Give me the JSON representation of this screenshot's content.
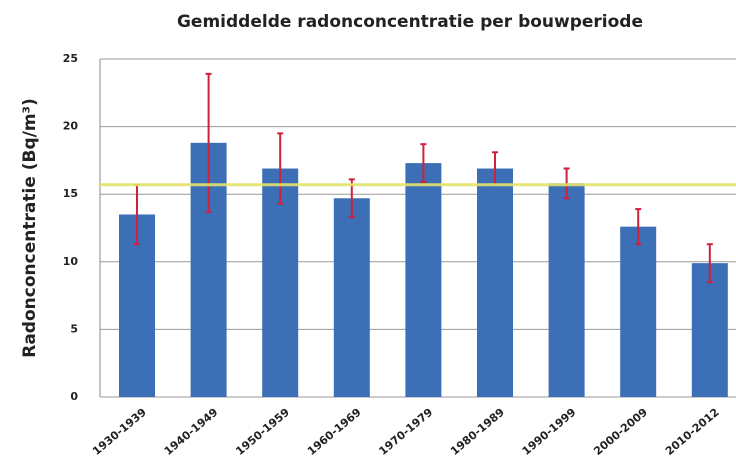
{
  "chart_data": {
    "type": "bar",
    "title": "Gemiddelde radonconcentratie per bouwperiode",
    "y_label": "Radonconcentratie (Bq/m³)",
    "categories": [
      "1930-1939",
      "1940-1949",
      "1950-1959",
      "1960-1969",
      "1970-1979",
      "1980-1989",
      "1990-1999",
      "2000-2009",
      "2010-2012"
    ],
    "values": [
      13.5,
      18.8,
      16.9,
      14.7,
      17.3,
      16.9,
      15.8,
      12.6,
      9.9
    ],
    "errors": [
      2.2,
      5.1,
      2.6,
      1.4,
      1.4,
      1.2,
      1.1,
      1.3,
      1.4
    ],
    "color": "#3d6fb6",
    "error_color": "#d0213a",
    "average_line": {
      "value": 15.7,
      "color": "#e3e36a"
    },
    "ylim": [
      0,
      25
    ],
    "yticks": [
      0,
      5,
      10,
      15,
      20,
      25
    ],
    "grid": true
  }
}
